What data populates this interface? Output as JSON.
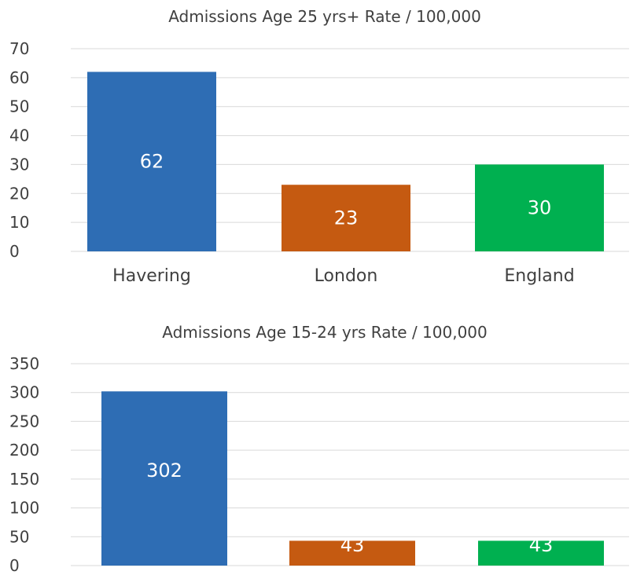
{
  "chart_data": [
    {
      "type": "bar",
      "title": "Admissions Age 25 yrs+ Rate / 100,000",
      "categories": [
        "Havering",
        "London",
        "England"
      ],
      "values": [
        62,
        23,
        30
      ],
      "data_labels": [
        "62",
        "23",
        "30"
      ],
      "colors": [
        "#2e6db4",
        "#c55a11",
        "#00b050"
      ],
      "ylim": [
        0,
        70
      ],
      "yticks": [
        0,
        10,
        20,
        30,
        40,
        50,
        60,
        70
      ],
      "ytick_labels": [
        "0",
        "10",
        "20",
        "30",
        "40",
        "50",
        "60",
        "70"
      ],
      "grid": true,
      "legend": "none"
    },
    {
      "type": "bar",
      "title": "Admissions Age 15-24 yrs Rate / 100,000",
      "categories": [
        "",
        "",
        ""
      ],
      "values": [
        302,
        43,
        43
      ],
      "data_labels": [
        "302",
        "43",
        "43"
      ],
      "colors": [
        "#2e6db4",
        "#c55a11",
        "#00b050"
      ],
      "ylim": [
        0,
        350
      ],
      "yticks": [
        0,
        50,
        100,
        150,
        200,
        250,
        300,
        350
      ],
      "ytick_labels": [
        "0",
        "50",
        "100",
        "150",
        "200",
        "250",
        "300",
        "350"
      ],
      "grid": true,
      "legend": "none"
    }
  ]
}
